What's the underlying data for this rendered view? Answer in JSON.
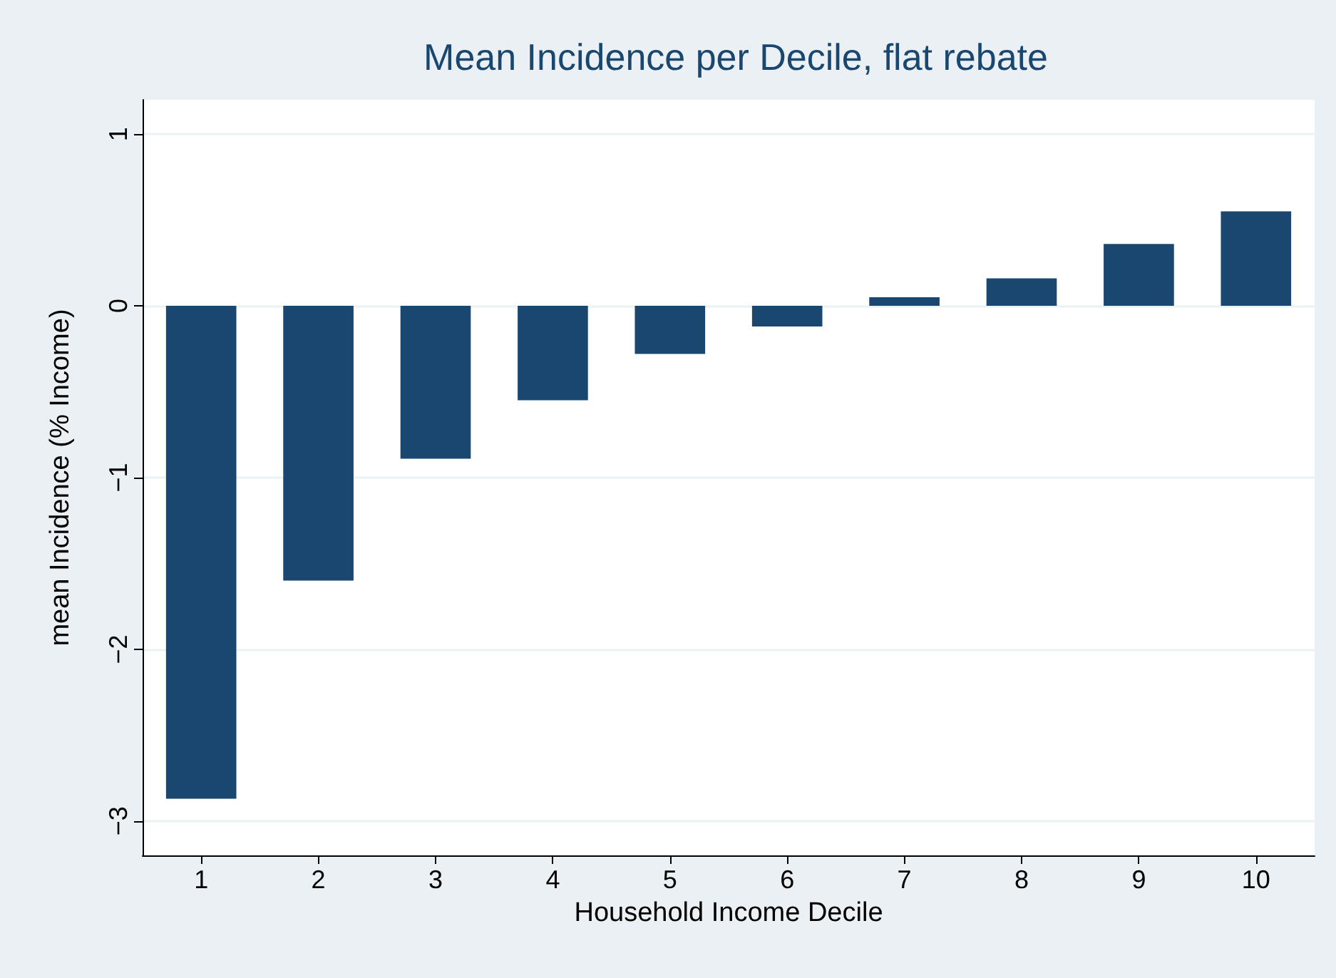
{
  "chart_data": {
    "type": "bar",
    "title": "Mean Incidence per Decile, flat rebate",
    "xlabel": "Household Income Decile",
    "ylabel": "mean Incidence (% Income)",
    "categories": [
      "1",
      "2",
      "3",
      "4",
      "5",
      "6",
      "7",
      "8",
      "9",
      "10"
    ],
    "values": [
      -2.87,
      -1.6,
      -0.89,
      -0.55,
      -0.28,
      -0.12,
      0.05,
      0.16,
      0.36,
      0.55
    ],
    "color": "#1a476f",
    "ylim": [
      -3.2,
      1.2
    ],
    "yticks": [
      -3,
      -2,
      -1,
      0,
      1
    ],
    "grid": "y"
  }
}
